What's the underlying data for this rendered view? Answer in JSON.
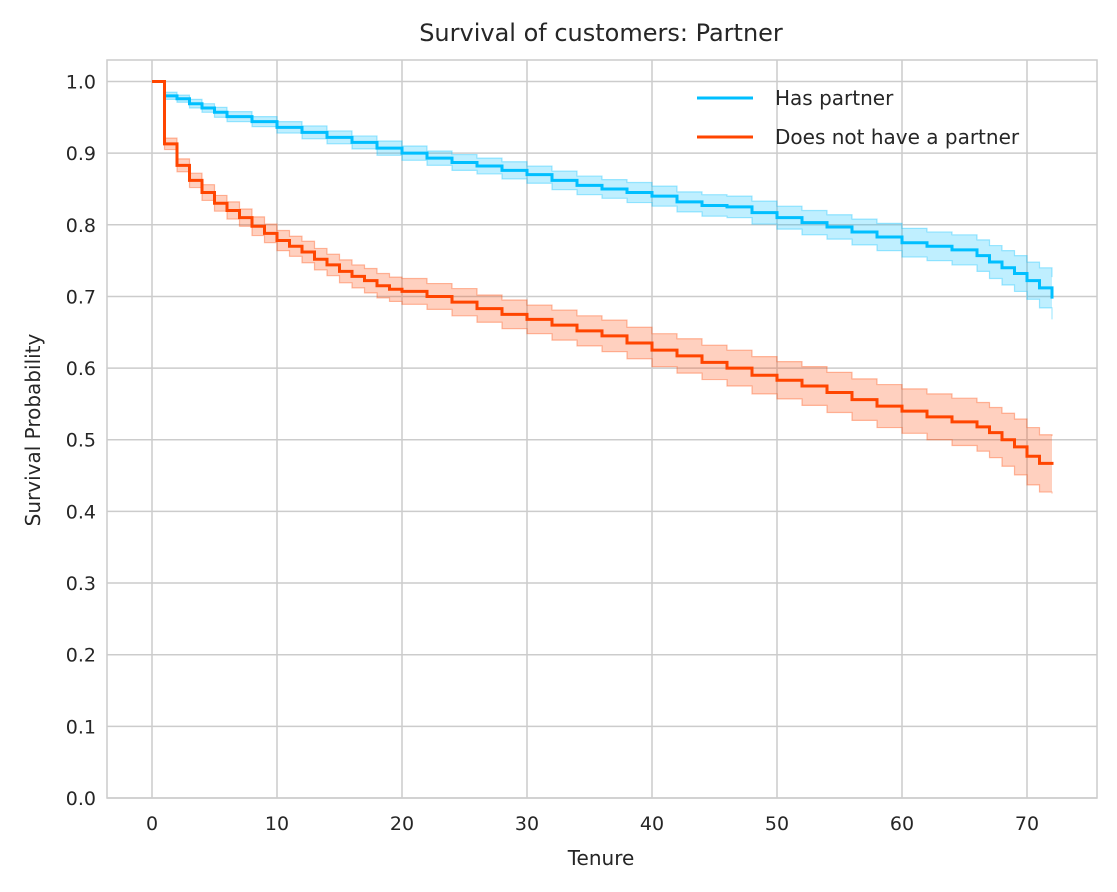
{
  "chart_data": {
    "type": "line",
    "title": "Survival of customers: Partner",
    "xlabel": "Tenure",
    "ylabel": "Survival Probability",
    "xlim": [
      -3.6,
      75.6
    ],
    "ylim": [
      0.0,
      1.03
    ],
    "xticks": [
      0,
      10,
      20,
      30,
      40,
      50,
      60,
      70
    ],
    "yticks": [
      0.0,
      0.1,
      0.2,
      0.3,
      0.4,
      0.5,
      0.6,
      0.7,
      0.8,
      0.9,
      1.0
    ],
    "grid": true,
    "legend_position": "top-right",
    "series": [
      {
        "name": "Has partner",
        "color": "#00bfff",
        "step": true,
        "confidence_band": true,
        "points": [
          [
            0,
            1.0
          ],
          [
            1,
            0.98
          ],
          [
            2,
            0.976
          ],
          [
            3,
            0.969
          ],
          [
            4,
            0.963
          ],
          [
            5,
            0.957
          ],
          [
            6,
            0.951
          ],
          [
            8,
            0.944
          ],
          [
            10,
            0.936
          ],
          [
            12,
            0.929
          ],
          [
            14,
            0.922
          ],
          [
            16,
            0.915
          ],
          [
            18,
            0.907
          ],
          [
            20,
            0.9
          ],
          [
            22,
            0.893
          ],
          [
            24,
            0.887
          ],
          [
            26,
            0.882
          ],
          [
            28,
            0.876
          ],
          [
            30,
            0.87
          ],
          [
            32,
            0.862
          ],
          [
            34,
            0.855
          ],
          [
            36,
            0.85
          ],
          [
            38,
            0.845
          ],
          [
            40,
            0.84
          ],
          [
            42,
            0.832
          ],
          [
            44,
            0.827
          ],
          [
            46,
            0.825
          ],
          [
            48,
            0.817
          ],
          [
            50,
            0.81
          ],
          [
            52,
            0.803
          ],
          [
            54,
            0.797
          ],
          [
            56,
            0.79
          ],
          [
            58,
            0.783
          ],
          [
            60,
            0.775
          ],
          [
            62,
            0.77
          ],
          [
            64,
            0.765
          ],
          [
            66,
            0.757
          ],
          [
            67,
            0.748
          ],
          [
            68,
            0.74
          ],
          [
            69,
            0.732
          ],
          [
            70,
            0.722
          ],
          [
            71,
            0.712
          ],
          [
            72,
            0.697
          ]
        ],
        "ci_lower": [
          [
            0,
            1.0
          ],
          [
            1,
            0.975
          ],
          [
            2,
            0.971
          ],
          [
            3,
            0.963
          ],
          [
            4,
            0.957
          ],
          [
            5,
            0.95
          ],
          [
            6,
            0.944
          ],
          [
            8,
            0.937
          ],
          [
            10,
            0.928
          ],
          [
            12,
            0.92
          ],
          [
            14,
            0.913
          ],
          [
            16,
            0.906
          ],
          [
            18,
            0.897
          ],
          [
            20,
            0.89
          ],
          [
            22,
            0.883
          ],
          [
            24,
            0.876
          ],
          [
            26,
            0.871
          ],
          [
            28,
            0.864
          ],
          [
            30,
            0.858
          ],
          [
            32,
            0.849
          ],
          [
            34,
            0.842
          ],
          [
            36,
            0.837
          ],
          [
            38,
            0.831
          ],
          [
            40,
            0.826
          ],
          [
            42,
            0.818
          ],
          [
            44,
            0.812
          ],
          [
            46,
            0.81
          ],
          [
            48,
            0.801
          ],
          [
            50,
            0.794
          ],
          [
            52,
            0.786
          ],
          [
            54,
            0.78
          ],
          [
            56,
            0.772
          ],
          [
            58,
            0.764
          ],
          [
            60,
            0.755
          ],
          [
            62,
            0.75
          ],
          [
            64,
            0.744
          ],
          [
            66,
            0.735
          ],
          [
            67,
            0.725
          ],
          [
            68,
            0.716
          ],
          [
            69,
            0.707
          ],
          [
            70,
            0.696
          ],
          [
            71,
            0.684
          ],
          [
            72,
            0.668
          ]
        ],
        "ci_upper": [
          [
            0,
            1.0
          ],
          [
            1,
            0.985
          ],
          [
            2,
            0.981
          ],
          [
            3,
            0.975
          ],
          [
            4,
            0.969
          ],
          [
            5,
            0.964
          ],
          [
            6,
            0.958
          ],
          [
            8,
            0.951
          ],
          [
            10,
            0.944
          ],
          [
            12,
            0.938
          ],
          [
            14,
            0.931
          ],
          [
            16,
            0.924
          ],
          [
            18,
            0.917
          ],
          [
            20,
            0.91
          ],
          [
            22,
            0.903
          ],
          [
            24,
            0.898
          ],
          [
            26,
            0.893
          ],
          [
            28,
            0.888
          ],
          [
            30,
            0.882
          ],
          [
            32,
            0.875
          ],
          [
            34,
            0.868
          ],
          [
            36,
            0.863
          ],
          [
            38,
            0.859
          ],
          [
            40,
            0.854
          ],
          [
            42,
            0.846
          ],
          [
            44,
            0.842
          ],
          [
            46,
            0.84
          ],
          [
            48,
            0.833
          ],
          [
            50,
            0.826
          ],
          [
            52,
            0.82
          ],
          [
            54,
            0.814
          ],
          [
            56,
            0.808
          ],
          [
            58,
            0.802
          ],
          [
            60,
            0.795
          ],
          [
            62,
            0.79
          ],
          [
            64,
            0.786
          ],
          [
            66,
            0.779
          ],
          [
            67,
            0.771
          ],
          [
            68,
            0.764
          ],
          [
            69,
            0.757
          ],
          [
            70,
            0.748
          ],
          [
            71,
            0.74
          ],
          [
            72,
            0.727
          ]
        ]
      },
      {
        "name": "Does not have a partner",
        "color": "#ff4500",
        "step": true,
        "confidence_band": true,
        "points": [
          [
            0,
            1.0
          ],
          [
            1,
            0.913
          ],
          [
            2,
            0.883
          ],
          [
            3,
            0.862
          ],
          [
            4,
            0.845
          ],
          [
            5,
            0.83
          ],
          [
            6,
            0.82
          ],
          [
            7,
            0.81
          ],
          [
            8,
            0.798
          ],
          [
            9,
            0.788
          ],
          [
            10,
            0.778
          ],
          [
            11,
            0.77
          ],
          [
            12,
            0.762
          ],
          [
            13,
            0.752
          ],
          [
            14,
            0.744
          ],
          [
            15,
            0.735
          ],
          [
            16,
            0.728
          ],
          [
            17,
            0.722
          ],
          [
            18,
            0.715
          ],
          [
            19,
            0.71
          ],
          [
            20,
            0.707
          ],
          [
            22,
            0.7
          ],
          [
            24,
            0.692
          ],
          [
            26,
            0.683
          ],
          [
            28,
            0.675
          ],
          [
            30,
            0.668
          ],
          [
            32,
            0.66
          ],
          [
            34,
            0.652
          ],
          [
            36,
            0.645
          ],
          [
            38,
            0.635
          ],
          [
            40,
            0.625
          ],
          [
            42,
            0.617
          ],
          [
            44,
            0.608
          ],
          [
            46,
            0.6
          ],
          [
            48,
            0.59
          ],
          [
            50,
            0.583
          ],
          [
            52,
            0.575
          ],
          [
            54,
            0.566
          ],
          [
            56,
            0.556
          ],
          [
            58,
            0.547
          ],
          [
            60,
            0.54
          ],
          [
            62,
            0.532
          ],
          [
            64,
            0.525
          ],
          [
            66,
            0.518
          ],
          [
            67,
            0.51
          ],
          [
            68,
            0.5
          ],
          [
            69,
            0.49
          ],
          [
            70,
            0.477
          ],
          [
            71,
            0.467
          ],
          [
            72,
            0.465
          ]
        ],
        "ci_lower": [
          [
            0,
            1.0
          ],
          [
            1,
            0.905
          ],
          [
            2,
            0.874
          ],
          [
            3,
            0.852
          ],
          [
            4,
            0.834
          ],
          [
            5,
            0.819
          ],
          [
            6,
            0.808
          ],
          [
            7,
            0.798
          ],
          [
            8,
            0.785
          ],
          [
            9,
            0.775
          ],
          [
            10,
            0.764
          ],
          [
            11,
            0.756
          ],
          [
            12,
            0.747
          ],
          [
            13,
            0.737
          ],
          [
            14,
            0.729
          ],
          [
            15,
            0.719
          ],
          [
            16,
            0.712
          ],
          [
            17,
            0.705
          ],
          [
            18,
            0.698
          ],
          [
            19,
            0.693
          ],
          [
            20,
            0.689
          ],
          [
            22,
            0.682
          ],
          [
            24,
            0.673
          ],
          [
            26,
            0.664
          ],
          [
            28,
            0.655
          ],
          [
            30,
            0.648
          ],
          [
            32,
            0.639
          ],
          [
            34,
            0.631
          ],
          [
            36,
            0.623
          ],
          [
            38,
            0.613
          ],
          [
            40,
            0.602
          ],
          [
            42,
            0.593
          ],
          [
            44,
            0.584
          ],
          [
            46,
            0.575
          ],
          [
            48,
            0.564
          ],
          [
            50,
            0.557
          ],
          [
            52,
            0.548
          ],
          [
            54,
            0.538
          ],
          [
            56,
            0.527
          ],
          [
            58,
            0.517
          ],
          [
            60,
            0.509
          ],
          [
            62,
            0.5
          ],
          [
            64,
            0.492
          ],
          [
            66,
            0.484
          ],
          [
            67,
            0.475
          ],
          [
            68,
            0.463
          ],
          [
            69,
            0.451
          ],
          [
            70,
            0.437
          ],
          [
            71,
            0.427
          ],
          [
            72,
            0.425
          ]
        ],
        "ci_upper": [
          [
            0,
            1.0
          ],
          [
            1,
            0.921
          ],
          [
            2,
            0.892
          ],
          [
            3,
            0.872
          ],
          [
            4,
            0.856
          ],
          [
            5,
            0.841
          ],
          [
            6,
            0.832
          ],
          [
            7,
            0.822
          ],
          [
            8,
            0.811
          ],
          [
            9,
            0.801
          ],
          [
            10,
            0.792
          ],
          [
            11,
            0.784
          ],
          [
            12,
            0.777
          ],
          [
            13,
            0.767
          ],
          [
            14,
            0.759
          ],
          [
            15,
            0.751
          ],
          [
            16,
            0.744
          ],
          [
            17,
            0.739
          ],
          [
            18,
            0.732
          ],
          [
            19,
            0.727
          ],
          [
            20,
            0.725
          ],
          [
            22,
            0.718
          ],
          [
            24,
            0.711
          ],
          [
            26,
            0.702
          ],
          [
            28,
            0.695
          ],
          [
            30,
            0.688
          ],
          [
            32,
            0.681
          ],
          [
            34,
            0.673
          ],
          [
            36,
            0.667
          ],
          [
            38,
            0.657
          ],
          [
            40,
            0.648
          ],
          [
            42,
            0.641
          ],
          [
            44,
            0.632
          ],
          [
            46,
            0.625
          ],
          [
            48,
            0.616
          ],
          [
            50,
            0.609
          ],
          [
            52,
            0.602
          ],
          [
            54,
            0.594
          ],
          [
            56,
            0.585
          ],
          [
            58,
            0.577
          ],
          [
            60,
            0.571
          ],
          [
            62,
            0.564
          ],
          [
            64,
            0.558
          ],
          [
            66,
            0.552
          ],
          [
            67,
            0.545
          ],
          [
            68,
            0.537
          ],
          [
            69,
            0.529
          ],
          [
            70,
            0.517
          ],
          [
            71,
            0.507
          ],
          [
            72,
            0.505
          ]
        ]
      }
    ]
  }
}
